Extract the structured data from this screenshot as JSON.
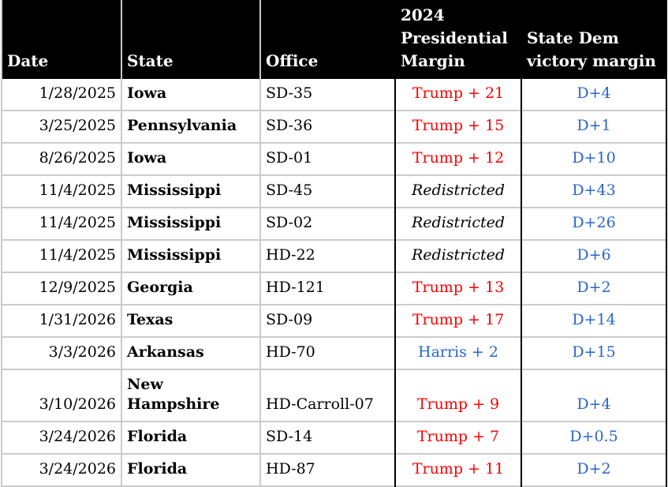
{
  "colors": {
    "trump_red": "#ff0000",
    "dem_blue": "#2a66c9",
    "grid_gray": "#cbcbcb",
    "header_bg": "#000000",
    "header_fg": "#ffffff"
  },
  "chart_data": {
    "type": "table",
    "columns": [
      {
        "key": "date",
        "label": "Date"
      },
      {
        "key": "state",
        "label": "State"
      },
      {
        "key": "office",
        "label": "Office"
      },
      {
        "key": "pres",
        "label": "2024\nPresidential\nMargin"
      },
      {
        "key": "dem",
        "label": "State Dem\nvictory margin"
      }
    ],
    "rows": [
      {
        "date": "1/28/2025",
        "state": "Iowa",
        "office": "SD-35",
        "pres": "Trump + 21",
        "pres_type": "trump",
        "dem": "D+4",
        "tall": false
      },
      {
        "date": "3/25/2025",
        "state": "Pennsylvania",
        "office": "SD-36",
        "pres": "Trump + 15",
        "pres_type": "trump",
        "dem": "D+1",
        "tall": false
      },
      {
        "date": "8/26/2025",
        "state": "Iowa",
        "office": "SD-01",
        "pres": "Trump + 12",
        "pres_type": "trump",
        "dem": "D+10",
        "tall": false
      },
      {
        "date": "11/4/2025",
        "state": "Mississippi",
        "office": "SD-45",
        "pres": "Redistricted",
        "pres_type": "redistricted",
        "dem": "D+43",
        "tall": false
      },
      {
        "date": "11/4/2025",
        "state": "Mississippi",
        "office": "SD-02",
        "pres": "Redistricted",
        "pres_type": "redistricted",
        "dem": "D+26",
        "tall": false
      },
      {
        "date": "11/4/2025",
        "state": "Mississippi",
        "office": "HD-22",
        "pres": "Redistricted",
        "pres_type": "redistricted",
        "dem": "D+6",
        "tall": false
      },
      {
        "date": "12/9/2025",
        "state": "Georgia",
        "office": "HD-121",
        "pres": "Trump + 13",
        "pres_type": "trump",
        "dem": "D+2",
        "tall": false
      },
      {
        "date": "1/31/2026",
        "state": "Texas",
        "office": "SD-09",
        "pres": "Trump + 17",
        "pres_type": "trump",
        "dem": "D+14",
        "tall": false
      },
      {
        "date": "3/3/2026",
        "state": "Arkansas",
        "office": "HD-70",
        "pres": "Harris + 2",
        "pres_type": "harris",
        "dem": "D+15",
        "tall": false
      },
      {
        "date": "3/10/2026",
        "state": "New\nHampshire",
        "office": "HD-Carroll-07",
        "pres": "Trump + 9",
        "pres_type": "trump",
        "dem": "D+4",
        "tall": true
      },
      {
        "date": "3/24/2026",
        "state": "Florida",
        "office": "SD-14",
        "pres": "Trump + 7",
        "pres_type": "trump",
        "dem": "D+0.5",
        "tall": false
      },
      {
        "date": "3/24/2026",
        "state": "Florida",
        "office": "HD-87",
        "pres": "Trump + 11",
        "pres_type": "trump",
        "dem": "D+2",
        "tall": false
      }
    ]
  }
}
